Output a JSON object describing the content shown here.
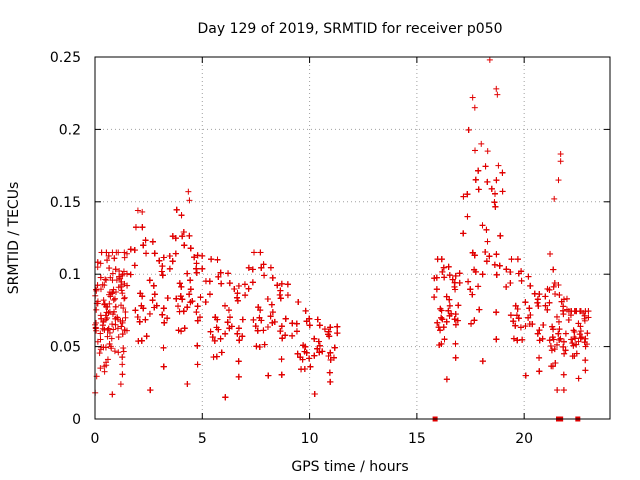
{
  "chart_data": {
    "type": "scatter",
    "title": "Day 129 of 2019, SRMTID for receiver p050",
    "xlabel": "GPS time / hours",
    "ylabel": "SRMTID / TECUs",
    "xlim": [
      0,
      24
    ],
    "ylim": [
      0,
      0.25
    ],
    "xticks": [
      0,
      5,
      10,
      15,
      20
    ],
    "xtick_labels": [
      "0",
      "5",
      "10",
      "15",
      "20"
    ],
    "yticks": [
      0,
      0.05,
      0.1,
      0.15,
      0.2,
      0.25
    ],
    "ytick_labels": [
      "0",
      "0.05",
      "0.1",
      "0.15",
      "0.2",
      "0.25"
    ],
    "grid": true,
    "marker": "+",
    "marker_color": "#e00000",
    "segments": [
      {
        "x_start": 0.0,
        "x_end": 1.5,
        "n": 180,
        "y_base": [
          0.07,
          0.075
        ],
        "y_spread": 0.022,
        "y_min": 0.017,
        "y_max": 0.125
      },
      {
        "x_start": 1.5,
        "x_end": 3.5,
        "n": 260,
        "y_base": [
          0.075,
          0.085
        ],
        "y_spread": 0.024,
        "y_min": 0.02,
        "y_max": 0.144
      },
      {
        "x_start": 3.5,
        "x_end": 5.0,
        "n": 210,
        "y_base": [
          0.085,
          0.085
        ],
        "y_spread": 0.024,
        "y_min": 0.02,
        "y_max": 0.157
      },
      {
        "x_start": 5.0,
        "x_end": 7.0,
        "n": 230,
        "y_base": [
          0.06,
          0.07
        ],
        "y_spread": 0.02,
        "y_min": 0.015,
        "y_max": 0.12
      },
      {
        "x_start": 7.0,
        "x_end": 9.0,
        "n": 200,
        "y_base": [
          0.07,
          0.07
        ],
        "y_spread": 0.02,
        "y_min": 0.03,
        "y_max": 0.125
      },
      {
        "x_start": 9.0,
        "x_end": 11.3,
        "n": 230,
        "y_base": [
          0.045,
          0.05
        ],
        "y_spread": 0.012,
        "y_min": 0.015,
        "y_max": 0.09
      },
      {
        "x_start": 15.7,
        "x_end": 17.0,
        "n": 140,
        "y_base": [
          0.065,
          0.08
        ],
        "y_spread": 0.018,
        "y_min": 0.025,
        "y_max": 0.12
      },
      {
        "x_start": 17.0,
        "x_end": 19.0,
        "n": 240,
        "y_base": [
          0.09,
          0.13
        ],
        "y_spread": 0.035,
        "y_min": 0.04,
        "y_max": 0.248
      },
      {
        "x_start": 19.0,
        "x_end": 21.0,
        "n": 190,
        "y_base": [
          0.075,
          0.065
        ],
        "y_spread": 0.017,
        "y_min": 0.03,
        "y_max": 0.12
      },
      {
        "x_start": 21.0,
        "x_end": 22.0,
        "n": 110,
        "y_base": [
          0.055,
          0.06
        ],
        "y_spread": 0.02,
        "y_min": 0.02,
        "y_max": 0.183
      },
      {
        "x_start": 22.0,
        "x_end": 23.0,
        "n": 80,
        "y_base": [
          0.055,
          0.06
        ],
        "y_spread": 0.013,
        "y_min": 0.028,
        "y_max": 0.081
      }
    ],
    "highlight_points": [
      {
        "x": 18.4,
        "y": 0.248
      },
      {
        "x": 18.7,
        "y": 0.228
      },
      {
        "x": 18.75,
        "y": 0.224
      },
      {
        "x": 17.6,
        "y": 0.222
      },
      {
        "x": 17.7,
        "y": 0.215
      },
      {
        "x": 18.0,
        "y": 0.19
      },
      {
        "x": 18.3,
        "y": 0.185
      },
      {
        "x": 18.8,
        "y": 0.175
      },
      {
        "x": 21.7,
        "y": 0.183
      },
      {
        "x": 21.7,
        "y": 0.178
      },
      {
        "x": 21.6,
        "y": 0.165
      },
      {
        "x": 21.4,
        "y": 0.152
      },
      {
        "x": 4.35,
        "y": 0.157
      },
      {
        "x": 4.4,
        "y": 0.151
      },
      {
        "x": 2.0,
        "y": 0.144
      },
      {
        "x": 2.2,
        "y": 0.143
      }
    ],
    "zero_markers": [
      15.85,
      21.6,
      21.7,
      22.5
    ]
  }
}
